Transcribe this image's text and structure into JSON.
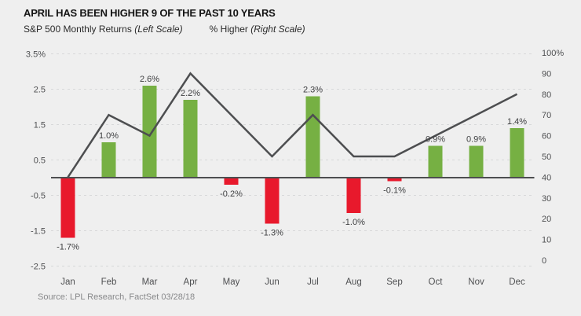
{
  "header": {
    "title": "APRIL HAS BEEN HIGHER 9 OF THE PAST 10 YEARS",
    "legend_left_name": "S&P 500 Monthly Returns",
    "legend_left_scale": "(Left Scale)",
    "legend_right_name": "% Higher",
    "legend_right_scale": "(Right Scale)"
  },
  "footer": {
    "source": "Source: LPL Research, FactSet 03/28/18"
  },
  "chart_data": {
    "type": "bar",
    "title": "APRIL HAS BEEN HIGHER 9 OF THE PAST 10 YEARS",
    "categories": [
      "Jan",
      "Feb",
      "Mar",
      "Apr",
      "May",
      "Jun",
      "Jul",
      "Aug",
      "Sep",
      "Oct",
      "Nov",
      "Dec"
    ],
    "series": [
      {
        "name": "S&P 500 Monthly Returns",
        "type": "bar",
        "axis": "left",
        "values": [
          -1.7,
          1.0,
          2.6,
          2.2,
          -0.2,
          -1.3,
          2.3,
          -1.0,
          -0.1,
          0.9,
          0.9,
          1.4
        ],
        "labels": [
          "-1.7%",
          "1.0%",
          "2.6%",
          "2.2%",
          "-0.2%",
          "-1.3%",
          "2.3%",
          "-1.0%",
          "-0.1%",
          "0.9%",
          "0.9%",
          "1.4%"
        ]
      },
      {
        "name": "% Higher",
        "type": "line",
        "axis": "right",
        "values": [
          40,
          70,
          60,
          90,
          70,
          50,
          70,
          50,
          50,
          60,
          70,
          80
        ]
      }
    ],
    "left_axis": {
      "tick_labels": [
        "3.5%",
        "2.5",
        "1.5",
        "0.5",
        "-0.5",
        "-1.5",
        "-2.5"
      ],
      "tick_values": [
        3.5,
        2.5,
        1.5,
        0.5,
        -0.5,
        -1.5,
        -2.5
      ],
      "min": -2.5,
      "max": 3.5
    },
    "right_axis": {
      "tick_labels": [
        "100%",
        "90",
        "80",
        "70",
        "60",
        "50",
        "40",
        "30",
        "20",
        "10",
        "0"
      ],
      "tick_values": [
        100,
        90,
        80,
        70,
        60,
        50,
        40,
        30,
        20,
        10,
        0
      ],
      "min": 0,
      "max": 100
    },
    "grid": "dashed-horizontal",
    "legend_position": "top",
    "colors": {
      "bar_positive": "#76b043",
      "bar_negative": "#e8192c",
      "line": "#4d4e50",
      "zero_line": "#4d4e50",
      "grid": "#d7d8d9",
      "background": "#efefef"
    }
  }
}
